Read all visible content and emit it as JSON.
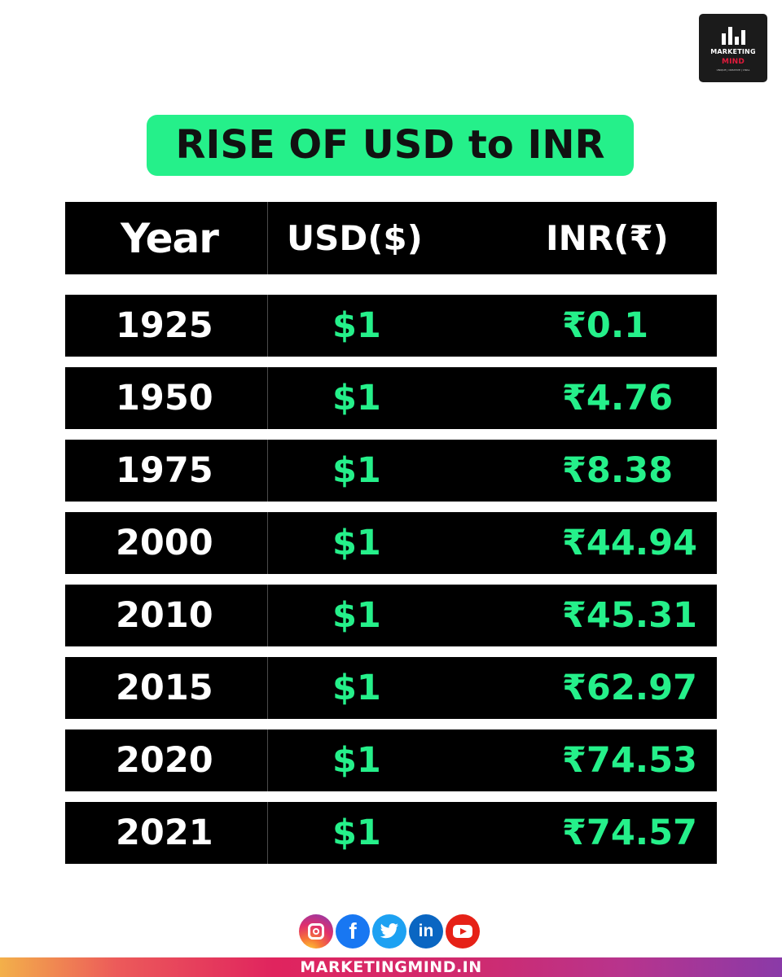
{
  "brand": {
    "logo_line1": "MARKETING",
    "logo_line2": "MIND",
    "logo_tagline": "UNIQUE | CREATIVE | VIRAL",
    "footer_url": "MARKETINGMIND.IN"
  },
  "title": "RISE OF USD to INR",
  "table": {
    "headers": {
      "year": "Year",
      "usd": "USD($)",
      "inr": "INR(₹)"
    },
    "rows": [
      {
        "year": "1925",
        "usd": "$1",
        "inr": "₹0.1"
      },
      {
        "year": "1950",
        "usd": "$1",
        "inr": "₹4.76"
      },
      {
        "year": "1975",
        "usd": "$1",
        "inr": "₹8.38"
      },
      {
        "year": "2000",
        "usd": "$1",
        "inr": "₹44.94"
      },
      {
        "year": "2010",
        "usd": "$1",
        "inr": "₹45.31"
      },
      {
        "year": "2015",
        "usd": "$1",
        "inr": "₹62.97"
      },
      {
        "year": "2020",
        "usd": "$1",
        "inr": "₹74.53"
      },
      {
        "year": "2021",
        "usd": "$1",
        "inr": "₹74.57"
      }
    ]
  },
  "social": {
    "facebook_glyph": "f",
    "linkedin_glyph": "in",
    "icons": [
      "instagram-icon",
      "facebook-icon",
      "twitter-icon",
      "linkedin-icon",
      "youtube-icon"
    ]
  },
  "colors": {
    "accent_green": "#25f08a",
    "row_background": "#000000"
  }
}
